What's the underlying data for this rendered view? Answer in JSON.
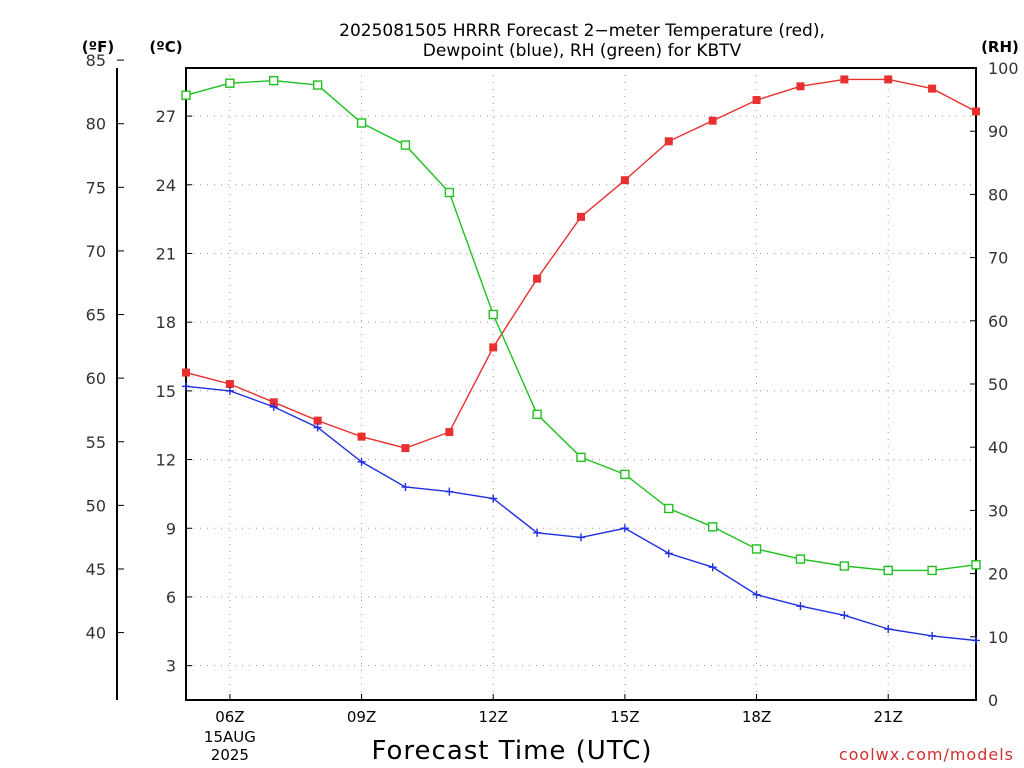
{
  "chart_data": {
    "type": "line",
    "title_lines": [
      "2025081505 HRRR Forecast 2−meter Temperature (red),",
      "Dewpoint (blue), RH (green) for KBTV"
    ],
    "xlabel": "Forecast Time (UTC)",
    "credit": "coolwx.com/models",
    "left_axis_f": {
      "unit": "(ºF)",
      "ticks": [
        40,
        45,
        50,
        55,
        60,
        65,
        70,
        75,
        80,
        85
      ]
    },
    "left_axis_c": {
      "unit": "(ºC)",
      "range": [
        1.5,
        29.1
      ],
      "ticks": [
        3,
        6,
        9,
        12,
        15,
        18,
        21,
        24,
        27
      ]
    },
    "right_axis_rh": {
      "unit": "(RH)",
      "range": [
        0,
        100
      ],
      "ticks": [
        0,
        10,
        20,
        30,
        40,
        50,
        60,
        70,
        80,
        90,
        100
      ]
    },
    "x_hours": [
      5,
      6,
      7,
      8,
      9,
      10,
      11,
      12,
      13,
      14,
      15,
      16,
      17,
      18,
      19,
      20,
      21,
      22,
      23
    ],
    "x_range": [
      5,
      23
    ],
    "x_ticks": [
      {
        "hour": 6,
        "label": "06Z",
        "sub1": "15AUG",
        "sub2": "2025"
      },
      {
        "hour": 9,
        "label": "09Z"
      },
      {
        "hour": 12,
        "label": "12Z"
      },
      {
        "hour": 15,
        "label": "15Z"
      },
      {
        "hour": 18,
        "label": "18Z"
      },
      {
        "hour": 21,
        "label": "21Z"
      }
    ],
    "series": [
      {
        "key": "temperature",
        "color": "#e83030",
        "marker": "filled-square",
        "axis": "celsius",
        "values": [
          15.8,
          15.3,
          14.5,
          13.7,
          13.0,
          12.5,
          13.2,
          16.9,
          19.9,
          22.6,
          24.2,
          25.9,
          26.8,
          27.7,
          28.3,
          28.6,
          28.6,
          28.2,
          27.2
        ]
      },
      {
        "key": "dewpoint",
        "color": "#2030e0",
        "marker": "plus",
        "axis": "celsius",
        "values": [
          15.2,
          15.0,
          14.3,
          13.4,
          11.9,
          10.8,
          10.6,
          10.3,
          8.8,
          8.6,
          9.0,
          7.9,
          7.3,
          6.1,
          5.6,
          5.2,
          4.6,
          4.3,
          4.1
        ]
      },
      {
        "key": "rh",
        "color": "#20c020",
        "marker": "open-square",
        "axis": "rh",
        "values": [
          95.7,
          97.6,
          98.0,
          97.3,
          91.3,
          87.8,
          80.3,
          61.0,
          45.2,
          38.4,
          35.7,
          30.3,
          27.4,
          23.9,
          22.3,
          21.2,
          20.5,
          20.5,
          21.4
        ]
      }
    ]
  }
}
